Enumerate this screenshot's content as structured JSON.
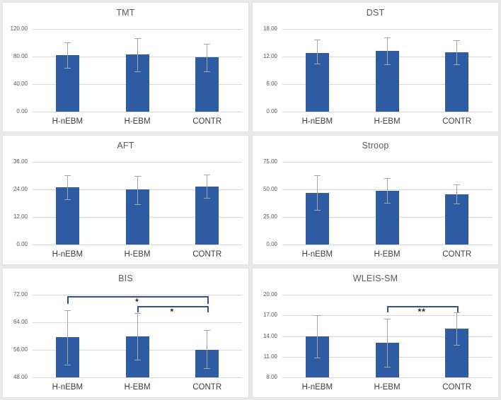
{
  "figure": {
    "background": "#e9e9e9",
    "panel_background": "#ffffff",
    "panel_border": "#e3e3e3"
  },
  "colors": {
    "bar": "#2e5ba1",
    "error_bar": "#a6a6a6",
    "gridline": "#d9d9d9",
    "tick_text": "#595959",
    "category_text": "#3f3f3f",
    "title_text": "#595959",
    "bracket": "#2f5496",
    "significance_text": "#1f1f1f"
  },
  "chart_data": [
    {
      "type": "bar",
      "title": "TMT",
      "categories": [
        "H-nEBM",
        "H-EBM",
        "CONTR"
      ],
      "values": [
        82,
        83,
        79
      ],
      "error_low": [
        64,
        59,
        58
      ],
      "error_high": [
        101,
        107,
        99
      ],
      "ylim": [
        0,
        120
      ],
      "yticks": [
        0,
        40,
        80,
        120
      ],
      "tick_format_decimals": 2,
      "grid": true,
      "significance": []
    },
    {
      "type": "bar",
      "title": "DST",
      "categories": [
        "H-nEBM",
        "H-EBM",
        "CONTR"
      ],
      "values": [
        12.8,
        13.3,
        12.9
      ],
      "error_low": [
        10.4,
        10.3,
        10.3
      ],
      "error_high": [
        15.7,
        16.1,
        15.5
      ],
      "ylim": [
        0,
        18
      ],
      "yticks": [
        0,
        6,
        12,
        18
      ],
      "tick_format_decimals": 2,
      "grid": true,
      "significance": []
    },
    {
      "type": "bar",
      "title": "AFT",
      "categories": [
        "H-nEBM",
        "H-EBM",
        "CONTR"
      ],
      "values": [
        24.8,
        23.9,
        25.3
      ],
      "error_low": [
        19.6,
        17.6,
        20.4
      ],
      "error_high": [
        30.3,
        30.0,
        30.6
      ],
      "ylim": [
        0,
        36
      ],
      "yticks": [
        0,
        12,
        24,
        36
      ],
      "tick_format_decimals": 2,
      "grid": true,
      "significance": []
    },
    {
      "type": "bar",
      "title": "Stroop",
      "categories": [
        "H-nEBM",
        "H-EBM",
        "CONTR"
      ],
      "values": [
        47,
        48.5,
        45.3
      ],
      "error_low": [
        31.5,
        38,
        37
      ],
      "error_high": [
        63,
        60,
        54.5
      ],
      "ylim": [
        0,
        75
      ],
      "yticks": [
        0,
        25,
        50,
        75
      ],
      "tick_format_decimals": 2,
      "grid": true,
      "significance": []
    },
    {
      "type": "bar",
      "title": "BIS",
      "categories": [
        "H-nEBM",
        "H-EBM",
        "CONTR"
      ],
      "values": [
        59.7,
        59.9,
        56.1
      ],
      "error_low": [
        51.8,
        53.2,
        50.6
      ],
      "error_high": [
        67.5,
        66.7,
        61.7
      ],
      "ylim": [
        48,
        72
      ],
      "yticks": [
        48,
        56,
        64,
        72
      ],
      "tick_format_decimals": 2,
      "grid": true,
      "significance": [
        {
          "from": 0,
          "to": 2,
          "label": "*",
          "y": 71.6,
          "drop": 2.2
        },
        {
          "from": 1,
          "to": 2,
          "label": "*",
          "y": 68.8,
          "drop": 2.0
        }
      ]
    },
    {
      "type": "bar",
      "title": "WLEIS-SM",
      "categories": [
        "H-nEBM",
        "H-EBM",
        "CONTR"
      ],
      "values": [
        14.0,
        13.0,
        15.1
      ],
      "error_low": [
        10.9,
        9.5,
        12.7
      ],
      "error_high": [
        17.0,
        16.5,
        17.4
      ],
      "ylim": [
        8,
        20
      ],
      "yticks": [
        8,
        11,
        14,
        17,
        20
      ],
      "tick_format_decimals": 2,
      "grid": true,
      "significance": [
        {
          "from": 1,
          "to": 2,
          "label": "**",
          "y": 18.4,
          "drop": 1.0
        }
      ]
    }
  ]
}
